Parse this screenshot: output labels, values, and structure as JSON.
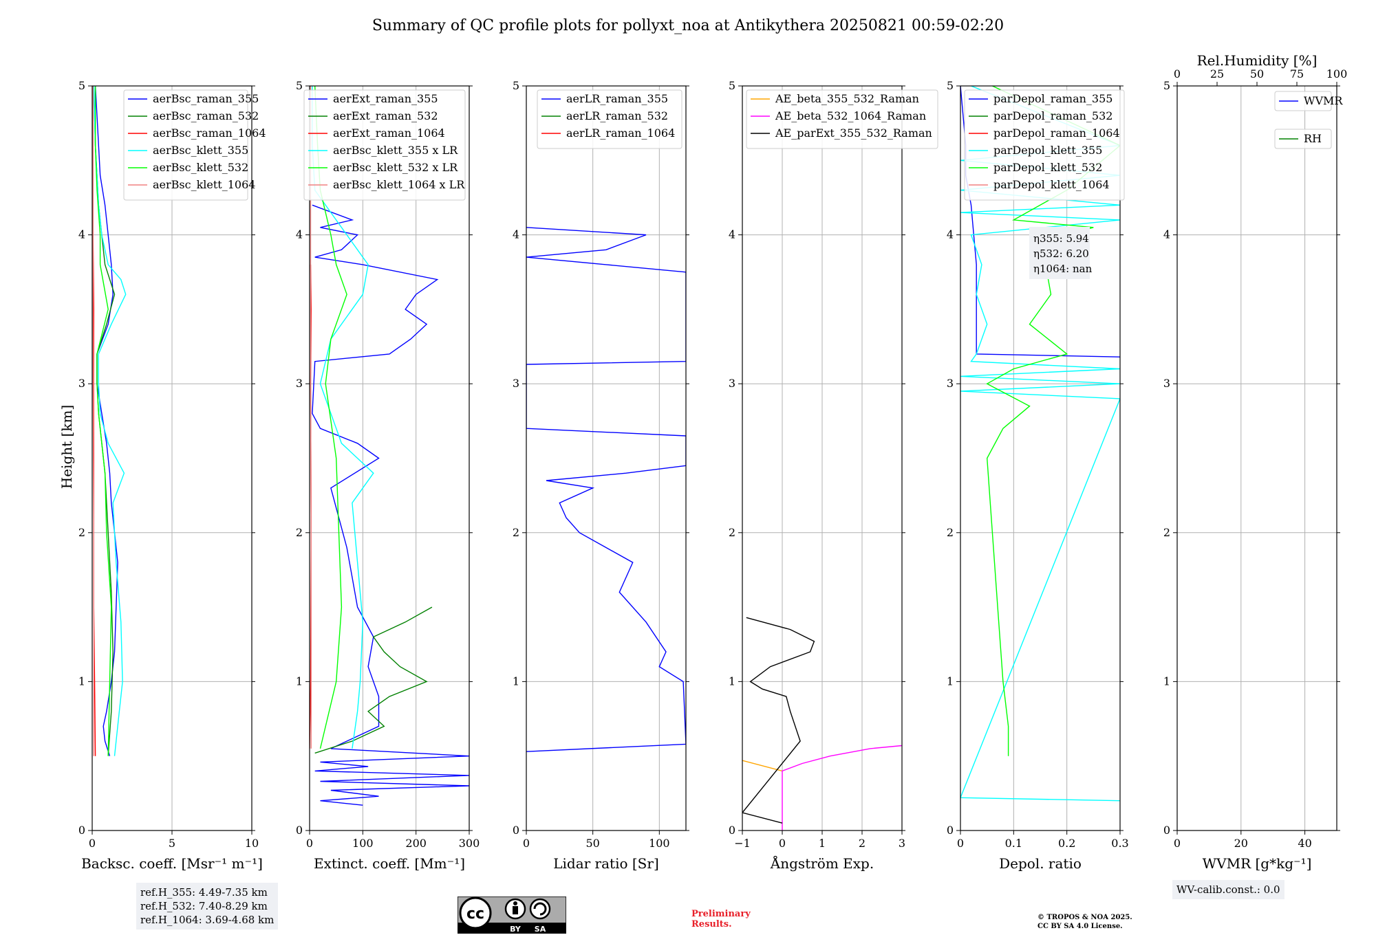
{
  "title": "Summary of QC profile plots for pollyxt_noa at Antikythera 20250821 00:59-02:20",
  "ylabel": "Height [km]",
  "ref_heights": [
    "ref.H_355: 4.49-7.35 km",
    "ref.H_532: 7.40-8.29 km",
    "ref.H_1064: 3.69-4.68 km"
  ],
  "wv_calib": "WV-calib.const.: 0.0",
  "preliminary": [
    "Preliminary",
    "Results."
  ],
  "copyright": [
    "© TROPOS & NOA 2025.",
    "CC BY SA 4.0 License."
  ],
  "license_badge": [
    "BY",
    "SA"
  ],
  "colors": {
    "blue": "#0000ff",
    "green": "#008000",
    "red": "#ff0000",
    "cyan": "#00ffff",
    "lime": "#00ff00",
    "salmon": "#f08080",
    "orange": "#ffa500",
    "magenta": "#ff00ff",
    "black": "#000000"
  },
  "chart_data": [
    {
      "type": "line",
      "xlabel": "Backsc. coeff. [Msr⁻¹ m⁻¹]",
      "xlim": [
        0,
        10
      ],
      "xticks": [
        0,
        5,
        10
      ],
      "ylim": [
        0,
        5
      ],
      "yticks": [
        0,
        1,
        2,
        3,
        4,
        5
      ],
      "legend_position": "top-right",
      "series": [
        {
          "name": "aerBsc_raman_355",
          "color": "#0000ff",
          "y": [
            0.5,
            0.6,
            0.7,
            0.8,
            1.0,
            1.2,
            1.5,
            1.8,
            2.0,
            2.2,
            2.4,
            2.6,
            2.8,
            3.0,
            3.2,
            3.4,
            3.6,
            3.8,
            4.0,
            4.2,
            4.4,
            4.6,
            4.8,
            5.0
          ],
          "x": [
            1.1,
            0.8,
            0.7,
            0.9,
            1.2,
            1.4,
            1.5,
            1.6,
            1.4,
            1.2,
            1.1,
            0.9,
            0.6,
            0.3,
            0.3,
            1.0,
            1.3,
            1.2,
            1.0,
            0.8,
            0.5,
            0.4,
            0.3,
            0.2
          ]
        },
        {
          "name": "aerBsc_raman_532",
          "color": "#008000",
          "y": [
            0.5,
            0.8,
            1.2,
            1.6,
            2.0,
            2.4,
            2.8,
            3.0,
            3.2,
            3.4,
            3.6,
            3.8,
            4.0,
            4.2,
            4.4,
            4.6,
            5.0
          ],
          "x": [
            1.0,
            1.2,
            1.3,
            1.2,
            1.0,
            0.8,
            0.4,
            0.3,
            0.3,
            0.9,
            1.4,
            0.8,
            0.6,
            0.4,
            0.3,
            0.2,
            0.1
          ]
        },
        {
          "name": "aerBsc_raman_1064",
          "color": "#ff0000",
          "y": [
            0.5,
            1.0,
            1.5,
            2.0,
            2.5,
            3.0,
            3.5,
            4.0,
            4.5,
            5.0
          ],
          "x": [
            0.2,
            0.15,
            0.1,
            0.1,
            0.1,
            0.08,
            0.1,
            0.05,
            0.05,
            0.05
          ]
        },
        {
          "name": "aerBsc_klett_355",
          "color": "#00ffff",
          "y": [
            0.5,
            0.8,
            1.0,
            1.4,
            1.8,
            2.2,
            2.4,
            2.6,
            2.8,
            3.0,
            3.2,
            3.4,
            3.6,
            3.7,
            3.8,
            4.0,
            4.2,
            4.4,
            4.6,
            5.0
          ],
          "x": [
            1.4,
            1.7,
            1.9,
            1.8,
            1.5,
            1.3,
            2.0,
            1.0,
            0.5,
            0.4,
            0.4,
            1.2,
            2.1,
            1.8,
            1.0,
            0.6,
            0.4,
            0.3,
            0.2,
            0.1
          ]
        },
        {
          "name": "aerBsc_klett_532",
          "color": "#00ff00",
          "y": [
            0.5,
            1.0,
            1.5,
            2.0,
            2.4,
            2.8,
            3.0,
            3.2,
            3.5,
            3.8,
            4.0,
            4.3,
            4.6,
            5.0
          ],
          "x": [
            1.0,
            1.1,
            1.2,
            0.9,
            0.8,
            0.4,
            0.3,
            0.3,
            1.0,
            0.5,
            0.5,
            0.3,
            0.2,
            0.2
          ]
        },
        {
          "name": "aerBsc_klett_1064",
          "color": "#f08080",
          "y": [
            0.5,
            1.0,
            2.0,
            3.0,
            4.0,
            5.0
          ],
          "x": [
            0.1,
            0.1,
            0.1,
            0.05,
            0.05,
            0.05
          ]
        }
      ]
    },
    {
      "type": "line",
      "xlabel": "Extinct. coeff. [Mm⁻¹]",
      "xlim": [
        0,
        300
      ],
      "xticks": [
        0,
        100,
        200,
        300
      ],
      "ylim": [
        0,
        5
      ],
      "yticks": [
        0,
        1,
        2,
        3,
        4,
        5
      ],
      "legend_position": "top-right",
      "series": [
        {
          "name": "aerExt_raman_355",
          "color": "#0000ff",
          "y": [
            0.17,
            0.2,
            0.23,
            0.27,
            0.3,
            0.33,
            0.37,
            0.4,
            0.43,
            0.46,
            0.5,
            0.55,
            0.7,
            0.9,
            1.1,
            1.3,
            1.5,
            1.7,
            1.9,
            2.1,
            2.3,
            2.5,
            2.6,
            2.7,
            2.8,
            3.15,
            3.2,
            3.3,
            3.4,
            3.5,
            3.6,
            3.7,
            3.8,
            3.85,
            3.9,
            4.0,
            4.05,
            4.1,
            4.2
          ],
          "x": [
            100,
            20,
            130,
            40,
            300,
            20,
            300,
            10,
            110,
            20,
            300,
            40,
            130,
            130,
            110,
            120,
            90,
            80,
            70,
            55,
            40,
            130,
            90,
            20,
            5,
            10,
            150,
            190,
            220,
            180,
            200,
            240,
            100,
            10,
            60,
            90,
            20,
            80,
            5
          ]
        },
        {
          "name": "aerExt_raman_532",
          "color": "#008000",
          "y": [
            0.52,
            0.6,
            0.7,
            0.8,
            0.9,
            1.0,
            1.1,
            1.2,
            1.3,
            1.4,
            1.5
          ],
          "x": [
            10,
            80,
            140,
            110,
            150,
            220,
            170,
            140,
            120,
            180,
            230
          ]
        },
        {
          "name": "aerExt_raman_1064",
          "color": "#ff0000",
          "y": [
            0.55,
            1.0,
            2.0,
            3.0,
            3.5,
            3.8
          ],
          "x": [
            0,
            2,
            3,
            2,
            3,
            2
          ]
        },
        {
          "name": "aerBsc_klett_355 x LR",
          "color": "#00ffff",
          "y": [
            0.55,
            0.8,
            1.0,
            1.4,
            1.8,
            2.2,
            2.4,
            2.6,
            3.0,
            3.3,
            3.6,
            3.8,
            4.0,
            4.3,
            4.6,
            5.0
          ],
          "x": [
            80,
            90,
            95,
            100,
            90,
            80,
            120,
            60,
            20,
            40,
            100,
            110,
            70,
            10,
            5,
            5
          ]
        },
        {
          "name": "aerBsc_klett_532 x LR",
          "color": "#00ff00",
          "y": [
            0.55,
            1.0,
            1.5,
            2.0,
            2.5,
            3.0,
            3.3,
            3.6,
            3.8,
            4.0,
            4.3,
            4.6,
            5.0
          ],
          "x": [
            20,
            50,
            60,
            55,
            50,
            30,
            40,
            70,
            50,
            40,
            20,
            15,
            10
          ]
        },
        {
          "name": "aerBsc_klett_1064 x LR",
          "color": "#f08080",
          "y": [
            0.55,
            1.0,
            2.0,
            3.0,
            4.0,
            5.0
          ],
          "x": [
            3,
            3,
            3,
            2,
            2,
            2
          ]
        }
      ]
    },
    {
      "type": "line",
      "xlabel": "Lidar ratio [Sr]",
      "xlim": [
        0,
        120
      ],
      "xticks": [
        0,
        50,
        100
      ],
      "ylim": [
        0,
        5
      ],
      "yticks": [
        0,
        1,
        2,
        3,
        4,
        5
      ],
      "legend_position": "top-right",
      "series": [
        {
          "name": "aerLR_raman_355",
          "color": "#0000ff",
          "y": [
            0.53,
            0.58,
            1.0,
            1.1,
            1.2,
            1.4,
            1.6,
            1.8,
            1.9,
            2.0,
            2.1,
            2.2,
            2.3,
            2.35,
            2.4,
            2.45,
            2.47,
            2.65,
            2.7,
            3.13,
            3.15,
            3.75,
            3.8,
            3.85,
            3.9,
            4.0,
            4.05
          ],
          "x": [
            0,
            120,
            118,
            100,
            105,
            90,
            70,
            80,
            60,
            40,
            30,
            25,
            50,
            15,
            75,
            120,
            120,
            120,
            0,
            0,
            120,
            120,
            60,
            0,
            60,
            90,
            0
          ]
        },
        {
          "name": "aerLR_raman_532",
          "color": "#008000",
          "y": [],
          "x": []
        },
        {
          "name": "aerLR_raman_1064",
          "color": "#ff0000",
          "y": [],
          "x": []
        }
      ]
    },
    {
      "type": "line",
      "xlabel": "Ångström Exp.",
      "xlim": [
        -1,
        3
      ],
      "xticks": [
        -1,
        0,
        1,
        2,
        3
      ],
      "ylim": [
        0,
        5
      ],
      "yticks": [
        0,
        1,
        2,
        3,
        4,
        5
      ],
      "legend_position": "top-left",
      "series": [
        {
          "name": "AE_beta_355_532_Raman",
          "color": "#ffa500",
          "y": [
            0.47,
            0.4
          ],
          "x": [
            -1,
            0
          ]
        },
        {
          "name": "AE_beta_532_1064_Raman",
          "color": "#ff00ff",
          "y": [
            0.0,
            0.4,
            0.45,
            0.5,
            0.55,
            0.57
          ],
          "x": [
            0,
            0,
            0.5,
            1.2,
            2.2,
            3.0
          ]
        },
        {
          "name": "AE_parExt_355_532_Raman",
          "color": "#000000",
          "y": [
            0.05,
            0.12,
            0.6,
            0.8,
            0.9,
            0.95,
            1.0,
            1.1,
            1.2,
            1.27,
            1.35,
            1.43
          ],
          "x": [
            0,
            -1,
            0.45,
            0.2,
            0.1,
            -0.5,
            -0.8,
            -0.3,
            0.7,
            0.8,
            0.2,
            -0.9
          ]
        }
      ]
    },
    {
      "type": "line",
      "xlabel": "Depol. ratio",
      "xlim": [
        0,
        0.3
      ],
      "xticks": [
        0.0,
        0.1,
        0.2,
        0.3
      ],
      "ylim": [
        0,
        5
      ],
      "yticks": [
        0,
        1,
        2,
        3,
        4,
        5
      ],
      "legend_position": "top-left",
      "annotations": [
        "η355: 5.94",
        "η532: 6.20",
        "η1064: nan"
      ],
      "series": [
        {
          "name": "parDepol_raman_355",
          "color": "#0000ff",
          "y": [
            3.18,
            3.2,
            3.4,
            3.6,
            3.8,
            4.0,
            4.2,
            4.4,
            4.6,
            5.0
          ],
          "x": [
            0.3,
            0.03,
            0.03,
            0.03,
            0.03,
            0.025,
            0.02,
            0.01,
            0.01,
            0.0
          ]
        },
        {
          "name": "parDepol_raman_532",
          "color": "#008000",
          "y": [],
          "x": []
        },
        {
          "name": "parDepol_raman_1064",
          "color": "#ff0000",
          "y": [],
          "x": []
        },
        {
          "name": "parDepol_klett_355",
          "color": "#00ffff",
          "y": [
            0.2,
            0.22,
            2.9,
            2.95,
            3.0,
            3.05,
            3.1,
            3.15,
            3.2,
            3.4,
            3.6,
            3.8,
            4.0,
            4.1,
            4.15,
            4.2,
            4.3,
            4.4,
            4.5,
            4.6,
            5.0
          ],
          "x": [
            0.3,
            0.0,
            0.3,
            0.0,
            0.3,
            0.0,
            0.3,
            0.02,
            0.03,
            0.05,
            0.03,
            0.04,
            0.02,
            0.3,
            0.0,
            0.3,
            0.0,
            0.3,
            0.0,
            0.3,
            0.02
          ]
        },
        {
          "name": "parDepol_klett_532",
          "color": "#00ff00",
          "y": [
            0.5,
            0.7,
            1.0,
            1.5,
            2.0,
            2.5,
            2.7,
            2.85,
            3.0,
            3.1,
            3.2,
            3.4,
            3.6,
            3.8,
            4.0,
            4.05,
            4.1,
            4.3,
            4.6,
            5.0
          ],
          "x": [
            0.09,
            0.09,
            0.08,
            0.07,
            0.06,
            0.05,
            0.08,
            0.13,
            0.05,
            0.1,
            0.2,
            0.13,
            0.17,
            0.16,
            0.2,
            0.25,
            0.1,
            0.2,
            0.3,
            0.06
          ]
        },
        {
          "name": "parDepol_klett_1064",
          "color": "#f08080",
          "y": [],
          "x": []
        }
      ]
    },
    {
      "type": "line",
      "xlabel": "WVMR [g*kg⁻¹]",
      "xlim": [
        0,
        50
      ],
      "xticks": [
        0,
        20,
        40
      ],
      "ylim": [
        0,
        5
      ],
      "yticks": [
        0,
        1,
        2,
        3,
        4,
        5
      ],
      "top_axis": {
        "label": "Rel.Humidity [%]",
        "ticks": [
          0,
          25,
          50,
          75,
          100
        ],
        "xlim": [
          0,
          100
        ]
      },
      "legend_position": "top-right",
      "series": [
        {
          "name": "WVMR",
          "color": "#0000ff",
          "y": [],
          "x": []
        },
        {
          "name": "RH",
          "color": "#008000",
          "y": [],
          "x": []
        }
      ]
    }
  ]
}
